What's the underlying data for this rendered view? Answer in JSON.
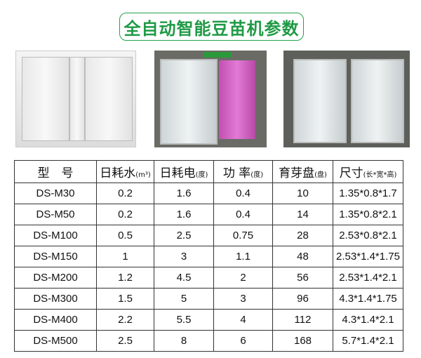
{
  "title": "全自动智能豆苗机参数",
  "accent": "#1f9a45",
  "table": {
    "headers": [
      {
        "main": "型　号",
        "unit": ""
      },
      {
        "main": "日耗水",
        "unit": "(m³)"
      },
      {
        "main": "日耗电",
        "unit": "(度)"
      },
      {
        "main": "功 率",
        "unit": "(度)"
      },
      {
        "main": "育芽盘",
        "unit": "(盘)"
      },
      {
        "main": "尺寸",
        "unit": "(长*宽*高)"
      }
    ],
    "rows": [
      [
        "DS-M30",
        "0.2",
        "1.6",
        "0.4",
        "10",
        "1.35*0.8*1.7"
      ],
      [
        "DS-M50",
        "0.2",
        "1.6",
        "0.4",
        "14",
        "1.35*0.8*2.1"
      ],
      [
        "DS-M100",
        "0.5",
        "2.5",
        "0.75",
        "28",
        "2.53*0.8*2.1"
      ],
      [
        "DS-M150",
        "1",
        "3",
        "1.1",
        "48",
        "2.53*1.4*1.75"
      ],
      [
        "DS-M200",
        "1.2",
        "4.5",
        "2",
        "56",
        "2.53*1.4*2.1"
      ],
      [
        "DS-M300",
        "1.5",
        "5",
        "3",
        "96",
        "4.3*1.4*1.75"
      ],
      [
        "DS-M400",
        "2.2",
        "5.5",
        "4",
        "112",
        "4.3*1.4*2.1"
      ],
      [
        "DS-M500",
        "2.5",
        "8",
        "6",
        "168",
        "5.7*1.4*2.1"
      ]
    ]
  }
}
